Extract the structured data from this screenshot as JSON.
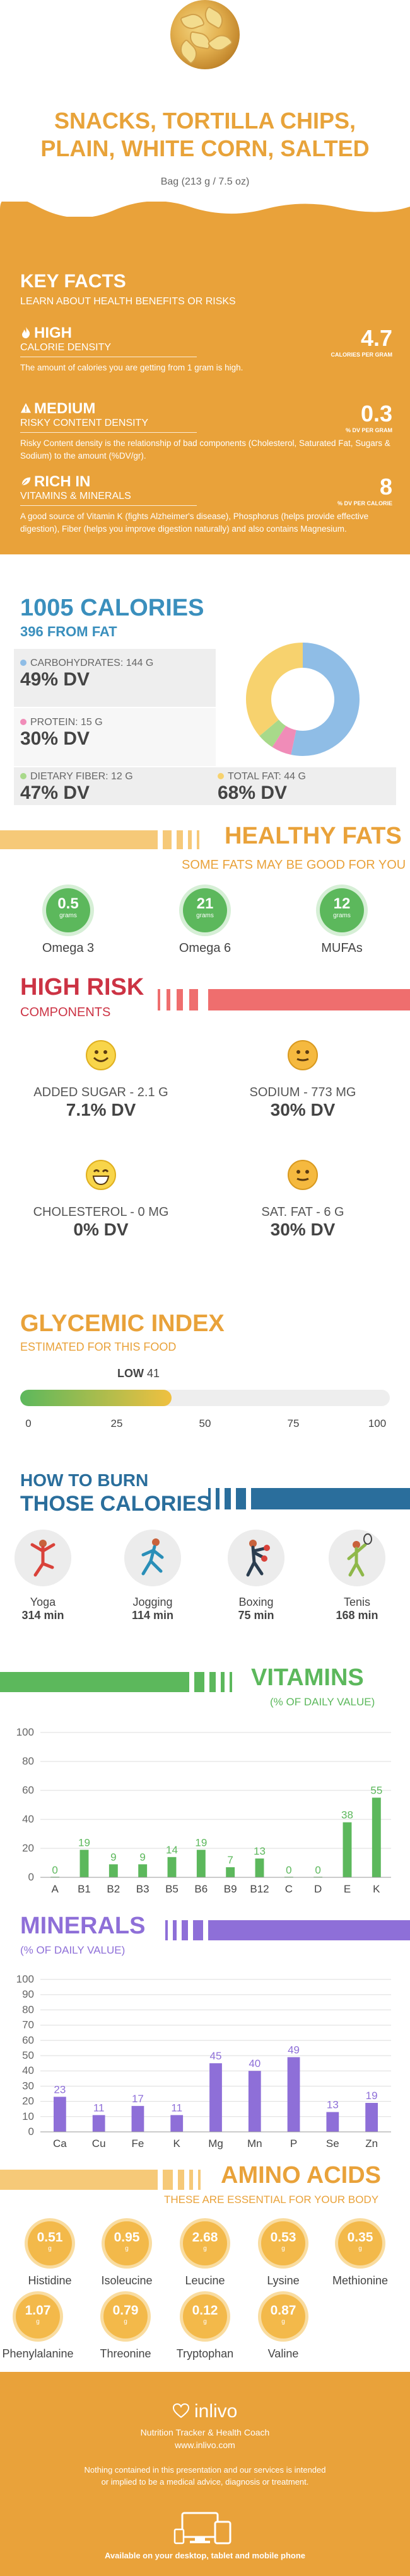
{
  "header": {
    "title": "Snacks, Tortilla Chips, Plain, White Corn, Salted",
    "serving": "Bag (213 g / 7.5 oz)"
  },
  "key_facts": {
    "title": "KEY FACTS",
    "subtitle": "LEARN ABOUT HEALTH BENEFITS OR RISKS",
    "items": [
      {
        "level": "HIGH",
        "category": "CALORIE DENSITY",
        "description": "The amount of calories you are getting from 1 gram is high.",
        "value": "4.7",
        "unit": "CALORIES PER GRAM",
        "icon": "flame-icon"
      },
      {
        "level": "MEDIUM",
        "category": "RISKY CONTENT DENSITY",
        "description": "Risky Content density is the relationship of bad components (Cholesterol, Saturated Fat, Sugars & Sodium) to the amount (%DV/gr).",
        "value": "0.3",
        "unit": "% DV PER GRAM",
        "icon": "warning-icon"
      },
      {
        "level": "RICH  IN",
        "category": "VITAMINS & MINERALS",
        "description": "A good source of Vitamin K (fights Alzheimer's disease), Phosphorus (helps provide effective digestion), Fiber (helps you improve digestion naturally) and also contains Magnesium.",
        "value": "8",
        "unit": "% DV PER CALORIE",
        "icon": "leaf-icon"
      }
    ]
  },
  "calories": {
    "title": "1005 CALORIES",
    "from_fat": "396 FROM FAT",
    "macros": [
      {
        "label": "CARBOHYDRATES: 144 g",
        "dv": "49% DV",
        "color": "#8fbde6",
        "share": 0.56
      },
      {
        "label": "PROTEIN: 15 g",
        "dv": "30% DV",
        "color": "#f08cb8",
        "share": 0.06
      },
      {
        "label": "DIETARY FIBER: 12 g",
        "dv": "47% DV",
        "color": "#a8d98a",
        "share": 0.05
      },
      {
        "label": "TOTAL FAT: 44 g",
        "dv": "68% DV",
        "color": "#f7d26e",
        "share": 0.38
      }
    ]
  },
  "healthy_fats": {
    "title": "HEALTHY FATS",
    "subtitle": "SOME FATS MAY BE GOOD FOR YOU",
    "items": [
      {
        "value": "0.5",
        "unit": "grams",
        "name": "Omega 3"
      },
      {
        "value": "21",
        "unit": "grams",
        "name": "Omega 6"
      },
      {
        "value": "12",
        "unit": "grams",
        "name": "MUFAs"
      }
    ]
  },
  "high_risk": {
    "title": "HIGH RISK",
    "subtitle": "COMPONENTS",
    "items": [
      {
        "label": "ADDED SUGAR - 2.1 g",
        "dv": "7.1% DV",
        "mood": "happy"
      },
      {
        "label": "SODIUM - 773 mg",
        "dv": "30% DV",
        "mood": "neutral"
      },
      {
        "label": "CHOLESTEROL - 0 mg",
        "dv": "0% DV",
        "mood": "grin"
      },
      {
        "label": "SAT. FAT - 6 g",
        "dv": "30% DV",
        "mood": "neutral"
      }
    ]
  },
  "glycemic": {
    "title": "GLYCEMIC INDEX",
    "subtitle": "ESTIMATED FOR THIS FOOD",
    "level": "LOW",
    "value": "41",
    "value_num": 41,
    "ticks": [
      "0",
      "25",
      "50",
      "75",
      "100"
    ]
  },
  "burn": {
    "line1": "HOW TO BURN",
    "line2": "THOSE CALORIES",
    "activities": [
      {
        "name": "Yoga",
        "minutes": "314 min",
        "icon": "yoga-icon"
      },
      {
        "name": "Jogging",
        "minutes": "114 min",
        "icon": "jogging-icon"
      },
      {
        "name": "Boxing",
        "minutes": "75 min",
        "icon": "boxing-icon"
      },
      {
        "name": "Tenis",
        "minutes": "168 min",
        "icon": "tennis-icon"
      }
    ]
  },
  "vitamins": {
    "title": "VITAMINS",
    "subtitle": "(% OF DAILY VALUE)",
    "color": "#5cb85c",
    "chart_data": {
      "type": "bar",
      "categories": [
        "A",
        "B1",
        "B2",
        "B3",
        "B5",
        "B6",
        "B9",
        "B12",
        "C",
        "D",
        "E",
        "K"
      ],
      "values": [
        0,
        19,
        9,
        9,
        14,
        19,
        7,
        13,
        0,
        0,
        38,
        55
      ],
      "y_ticks": [
        "0",
        "20",
        "40",
        "60",
        "80",
        "100"
      ],
      "ylim": [
        0,
        100
      ]
    }
  },
  "minerals": {
    "title": "MINERALS",
    "subtitle": "(% OF DAILY VALUE)",
    "color": "#8e6fd8",
    "chart_data": {
      "type": "bar",
      "categories": [
        "Ca",
        "Cu",
        "Fe",
        "K",
        "Mg",
        "Mn",
        "P",
        "Se",
        "Zn"
      ],
      "values": [
        23,
        11,
        17,
        11,
        45,
        40,
        49,
        13,
        19
      ],
      "y_ticks": [
        "0",
        "10",
        "20",
        "30",
        "40",
        "50",
        "60",
        "70",
        "80",
        "90",
        "100"
      ],
      "ylim": [
        0,
        100
      ]
    }
  },
  "amino": {
    "title": "AMINO ACIDS",
    "subtitle": "THESE ARE ESSENTIAL FOR YOUR BODY",
    "items": [
      {
        "value": "0.51",
        "unit": "g",
        "name": "Histidine"
      },
      {
        "value": "0.95",
        "unit": "g",
        "name": "Isoleucine"
      },
      {
        "value": "2.68",
        "unit": "g",
        "name": "Leucine"
      },
      {
        "value": "0.53",
        "unit": "g",
        "name": "Lysine"
      },
      {
        "value": "0.35",
        "unit": "g",
        "name": "Methionine"
      },
      {
        "value": "1.07",
        "unit": "g",
        "name": "Phenylalanine"
      },
      {
        "value": "0.79",
        "unit": "g",
        "name": "Threonine"
      },
      {
        "value": "0.12",
        "unit": "g",
        "name": "Tryptophan"
      },
      {
        "value": "0.87",
        "unit": "g",
        "name": "Valine"
      }
    ]
  },
  "footer": {
    "logo": "inlivo",
    "tagline": "Nutrition Tracker & Health Coach",
    "url": "www.inlivo.com",
    "disclaimer": "Nothing contained in this presentation and our services is intended or implied to be a medical advice, diagnosis or treatment.",
    "available": "Available on your desktop, tablet and mobile phone"
  }
}
